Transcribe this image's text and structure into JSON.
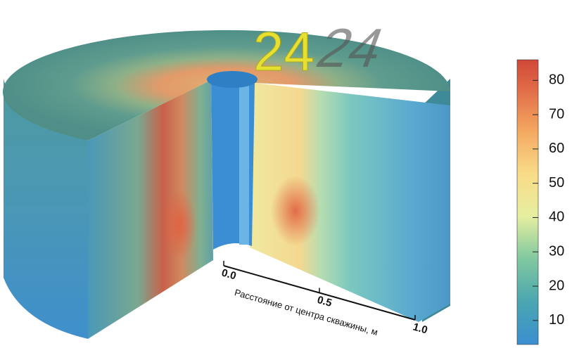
{
  "frame_label": "24",
  "axis": {
    "title": "Расстояние от центра скважины, м",
    "range": [
      0,
      1
    ],
    "ticks": [
      {
        "value": 0,
        "label": "0.0"
      },
      {
        "value": 0.5,
        "label": "0.5"
      },
      {
        "value": 1,
        "label": "1.0"
      }
    ]
  },
  "colorbar": {
    "range": [
      3,
      86
    ],
    "ticks": [
      10,
      20,
      30,
      40,
      50,
      60,
      70,
      80
    ]
  }
}
